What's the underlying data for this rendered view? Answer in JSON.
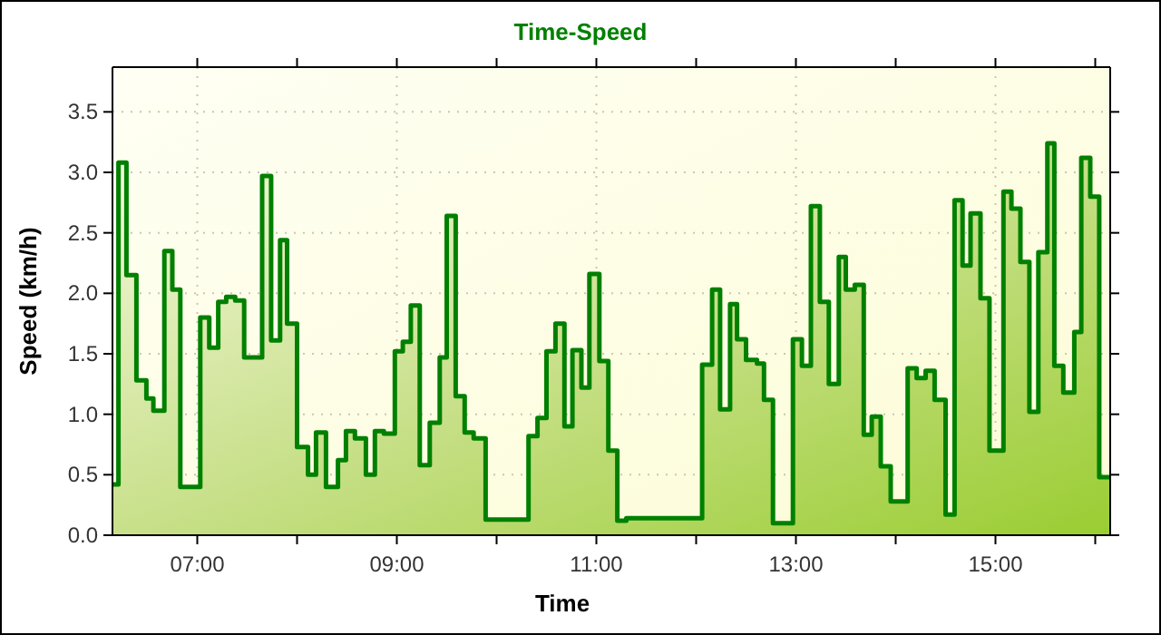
{
  "chart_data": {
    "type": "area",
    "title": "Time-Speed",
    "xlabel": "Time",
    "ylabel": "Speed (km/h)",
    "x": [
      6.15,
      6.21,
      6.21,
      6.29,
      6.29,
      6.39,
      6.39,
      6.49,
      6.49,
      6.56,
      6.56,
      6.67,
      6.67,
      6.75,
      6.75,
      6.83,
      6.83,
      7.03,
      7.03,
      7.12,
      7.12,
      7.21,
      7.21,
      7.29,
      7.29,
      7.38,
      7.38,
      7.47,
      7.47,
      7.65,
      7.65,
      7.74,
      7.74,
      7.83,
      7.83,
      7.9,
      7.9,
      8.0,
      8.0,
      8.11,
      8.11,
      8.19,
      8.19,
      8.29,
      8.29,
      8.41,
      8.41,
      8.49,
      8.49,
      8.58,
      8.58,
      8.69,
      8.69,
      8.78,
      8.78,
      8.87,
      8.87,
      8.98,
      8.98,
      9.06,
      9.06,
      9.14,
      9.14,
      9.23,
      9.23,
      9.33,
      9.33,
      9.43,
      9.43,
      9.5,
      9.5,
      9.59,
      9.59,
      9.68,
      9.68,
      9.77,
      9.77,
      9.89,
      9.89,
      10.32,
      10.32,
      10.41,
      10.41,
      10.5,
      10.5,
      10.59,
      10.59,
      10.68,
      10.68,
      10.76,
      10.76,
      10.85,
      10.85,
      10.93,
      10.93,
      11.03,
      11.03,
      11.12,
      11.12,
      11.21,
      11.21,
      11.3,
      11.3,
      12.06,
      12.06,
      12.16,
      12.16,
      12.24,
      12.24,
      12.34,
      12.34,
      12.41,
      12.41,
      12.5,
      12.5,
      12.61,
      12.61,
      12.68,
      12.68,
      12.77,
      12.77,
      12.97,
      12.97,
      13.06,
      13.06,
      13.15,
      13.15,
      13.24,
      13.24,
      13.33,
      13.33,
      13.43,
      13.43,
      13.5,
      13.5,
      13.59,
      13.59,
      13.68,
      13.68,
      13.76,
      13.76,
      13.85,
      13.85,
      13.95,
      13.95,
      14.12,
      14.12,
      14.21,
      14.21,
      14.3,
      14.3,
      14.39,
      14.39,
      14.5,
      14.5,
      14.59,
      14.59,
      14.67,
      14.67,
      14.75,
      14.75,
      14.85,
      14.85,
      14.94,
      14.94,
      15.08,
      15.08,
      15.16,
      15.16,
      15.25,
      15.25,
      15.34,
      15.34,
      15.43,
      15.43,
      15.52,
      15.52,
      15.59,
      15.59,
      15.68,
      15.68,
      15.79,
      15.79,
      15.86,
      15.86,
      15.95,
      15.95,
      16.04,
      16.04,
      16.15
    ],
    "series": [
      {
        "color": "#008000",
        "values": [
          0.42,
          0.42,
          3.08,
          3.08,
          2.15,
          2.15,
          1.28,
          1.28,
          1.13,
          1.13,
          1.03,
          1.03,
          2.35,
          2.35,
          2.03,
          2.03,
          0.4,
          0.4,
          1.8,
          1.8,
          1.55,
          1.55,
          1.93,
          1.93,
          1.97,
          1.97,
          1.94,
          1.94,
          1.47,
          1.47,
          2.97,
          2.97,
          1.61,
          1.61,
          2.44,
          2.44,
          1.75,
          1.75,
          0.73,
          0.73,
          0.5,
          0.5,
          0.85,
          0.85,
          0.4,
          0.4,
          0.62,
          0.62,
          0.86,
          0.86,
          0.8,
          0.8,
          0.5,
          0.5,
          0.86,
          0.86,
          0.84,
          0.84,
          1.52,
          1.52,
          1.6,
          1.6,
          1.9,
          1.9,
          0.58,
          0.58,
          0.93,
          0.93,
          1.47,
          1.47,
          2.64,
          2.64,
          1.15,
          1.15,
          0.85,
          0.85,
          0.8,
          0.8,
          0.13,
          0.13,
          0.82,
          0.82,
          0.97,
          0.97,
          1.52,
          1.52,
          1.75,
          1.75,
          0.9,
          0.9,
          1.53,
          1.53,
          1.22,
          1.22,
          2.16,
          2.16,
          1.44,
          1.44,
          0.7,
          0.7,
          0.12,
          0.12,
          0.14,
          0.14,
          1.41,
          1.41,
          2.03,
          2.03,
          1.04,
          1.04,
          1.91,
          1.91,
          1.62,
          1.62,
          1.45,
          1.45,
          1.42,
          1.42,
          1.12,
          1.12,
          0.1,
          0.1,
          1.62,
          1.62,
          1.4,
          1.4,
          2.72,
          2.72,
          1.93,
          1.93,
          1.25,
          1.25,
          2.3,
          2.3,
          2.03,
          2.03,
          2.07,
          2.07,
          0.83,
          0.83,
          0.98,
          0.98,
          0.57,
          0.57,
          0.28,
          0.28,
          1.38,
          1.38,
          1.3,
          1.3,
          1.36,
          1.36,
          1.12,
          1.12,
          0.17,
          0.17,
          2.77,
          2.77,
          2.23,
          2.23,
          2.66,
          2.66,
          1.96,
          1.96,
          0.7,
          0.7,
          2.84,
          2.84,
          2.7,
          2.7,
          2.26,
          2.26,
          1.02,
          1.02,
          2.34,
          2.34,
          3.24,
          3.24,
          1.4,
          1.4,
          1.18,
          1.18,
          1.68,
          1.68,
          3.12,
          3.12,
          2.8,
          2.8,
          0.48,
          0.48
        ]
      }
    ],
    "xlim": [
      6.15,
      16.15
    ],
    "xticks": [
      {
        "value": 7,
        "label": "07:00"
      },
      {
        "value": 8,
        "label": null
      },
      {
        "value": 9,
        "label": "09:00"
      },
      {
        "value": 10,
        "label": null
      },
      {
        "value": 11,
        "label": "11:00"
      },
      {
        "value": 12,
        "label": null
      },
      {
        "value": 13,
        "label": "13:00"
      },
      {
        "value": 14,
        "label": null
      },
      {
        "value": 15,
        "label": "15:00"
      },
      {
        "value": 16,
        "label": null
      }
    ],
    "ylim": [
      0,
      3.87
    ],
    "yticks": [
      {
        "value": 0,
        "label": "0.0"
      },
      {
        "value": 0.5,
        "label": "0.5"
      },
      {
        "value": 1,
        "label": "1.0"
      },
      {
        "value": 1.5,
        "label": "1.5"
      },
      {
        "value": 2,
        "label": "2.0"
      },
      {
        "value": 2.5,
        "label": "2.5"
      },
      {
        "value": 3,
        "label": "3.0"
      },
      {
        "value": 3.5,
        "label": "3.5"
      }
    ],
    "grid": true,
    "line_style": "solid"
  }
}
